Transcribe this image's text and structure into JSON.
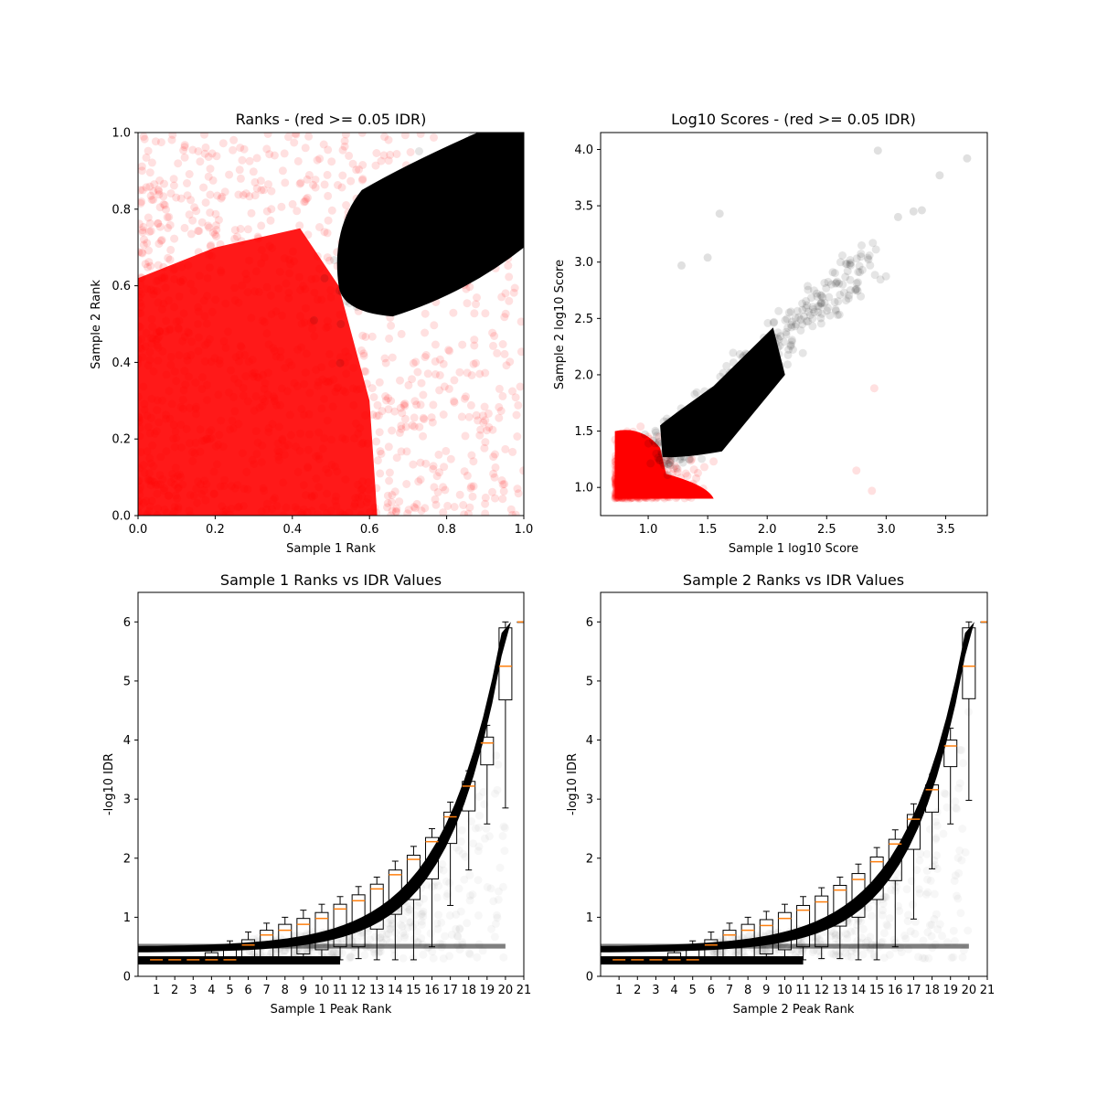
{
  "figure": {
    "background": "#ffffff"
  },
  "chart_data": [
    {
      "type": "scatter",
      "title": "Ranks - (red >= 0.05 IDR)",
      "xlabel": "Sample 1 Rank",
      "ylabel": "Sample 2 Rank",
      "xlim": [
        0.0,
        1.0
      ],
      "ylim": [
        0.0,
        1.0
      ],
      "xticks": [
        "0.0",
        "0.2",
        "0.4",
        "0.6",
        "0.8",
        "1.0"
      ],
      "yticks": [
        "0.0",
        "0.2",
        "0.4",
        "0.6",
        "0.8",
        "1.0"
      ],
      "grid": false,
      "point_alpha": 0.05,
      "series": [
        {
          "color": "#ff0000",
          "description_region": {
            "dense_x": [
              0.0,
              0.6
            ],
            "dense_y": [
              0.0,
              0.72
            ],
            "sparse_to": [
              1.0,
              1.0
            ]
          }
        },
        {
          "color": "#000000",
          "description_region": {
            "dense_x": [
              0.51,
              1.0
            ],
            "dense_y": [
              0.52,
              1.0
            ],
            "tip": [
              0.52,
              0.6
            ]
          }
        }
      ]
    },
    {
      "type": "scatter",
      "title": "Log10 Scores - (red >= 0.05 IDR)",
      "xlabel": "Sample 1 log10 Score",
      "ylabel": "Sample 2 log10 Score",
      "xlim": [
        0.6,
        3.85
      ],
      "ylim": [
        0.75,
        4.15
      ],
      "xticks": [
        "1.0",
        "1.5",
        "2.0",
        "2.5",
        "3.0",
        "3.5"
      ],
      "yticks": [
        "1.0",
        "1.5",
        "2.0",
        "2.5",
        "3.0",
        "3.5",
        "4.0"
      ],
      "grid": false,
      "point_alpha": 0.08,
      "series": [
        {
          "color": "#ff0000",
          "description_region": {
            "dense_x": [
              0.72,
              1.7
            ],
            "dense_y": [
              0.9,
              1.55
            ]
          }
        },
        {
          "color": "#000000",
          "description_region": {
            "dense_x": [
              1.1,
              2.2
            ],
            "dense_y": [
              1.25,
              2.4
            ]
          }
        }
      ],
      "outliers": [
        [
          3.68,
          3.92
        ],
        [
          2.93,
          3.99
        ],
        [
          3.45,
          3.77
        ],
        [
          3.3,
          3.46
        ],
        [
          3.23,
          3.45
        ],
        [
          3.1,
          3.4
        ],
        [
          1.6,
          3.43
        ],
        [
          1.5,
          3.04
        ],
        [
          1.28,
          2.97
        ],
        [
          2.88,
          0.97
        ],
        [
          2.9,
          1.88
        ],
        [
          2.75,
          1.15
        ]
      ]
    },
    {
      "type": "scatter",
      "title": "Sample 1 Ranks vs IDR Values",
      "xlabel": "Sample 1 Peak Rank",
      "ylabel": "-log10 IDR",
      "xlim": [
        0,
        21
      ],
      "ylim": [
        0,
        6.5
      ],
      "xticks": [
        "1",
        "2",
        "3",
        "4",
        "5",
        "6",
        "7",
        "8",
        "9",
        "10",
        "11",
        "12",
        "13",
        "14",
        "15",
        "16",
        "17",
        "18",
        "19",
        "20",
        "21"
      ],
      "yticks": [
        "0",
        "1",
        "2",
        "3",
        "4",
        "5",
        "6"
      ],
      "grid": false,
      "point_color": "#000000",
      "box_median_color": "#ff7f0e",
      "boxes": [
        {
          "pos": 1,
          "q1": 0.28,
          "med": 0.28,
          "q3": 0.28,
          "lo": 0.28,
          "hi": 0.28
        },
        {
          "pos": 2,
          "q1": 0.28,
          "med": 0.28,
          "q3": 0.28,
          "lo": 0.28,
          "hi": 0.28
        },
        {
          "pos": 3,
          "q1": 0.28,
          "med": 0.28,
          "q3": 0.28,
          "lo": 0.28,
          "hi": 0.28
        },
        {
          "pos": 4,
          "q1": 0.28,
          "med": 0.28,
          "q3": 0.4,
          "lo": 0.28,
          "hi": 0.5
        },
        {
          "pos": 5,
          "q1": 0.28,
          "med": 0.28,
          "q3": 0.45,
          "lo": 0.28,
          "hi": 0.6
        },
        {
          "pos": 6,
          "q1": 0.28,
          "med": 0.53,
          "q3": 0.62,
          "lo": 0.28,
          "hi": 0.75
        },
        {
          "pos": 7,
          "q1": 0.3,
          "med": 0.7,
          "q3": 0.78,
          "lo": 0.28,
          "hi": 0.9
        },
        {
          "pos": 8,
          "q1": 0.32,
          "med": 0.78,
          "q3": 0.88,
          "lo": 0.28,
          "hi": 1.0
        },
        {
          "pos": 9,
          "q1": 0.38,
          "med": 0.88,
          "q3": 0.98,
          "lo": 0.28,
          "hi": 1.12
        },
        {
          "pos": 10,
          "q1": 0.45,
          "med": 0.98,
          "q3": 1.08,
          "lo": 0.28,
          "hi": 1.22
        },
        {
          "pos": 11,
          "q1": 0.5,
          "med": 1.14,
          "q3": 1.22,
          "lo": 0.28,
          "hi": 1.35
        },
        {
          "pos": 12,
          "q1": 0.5,
          "med": 1.28,
          "q3": 1.38,
          "lo": 0.3,
          "hi": 1.52
        },
        {
          "pos": 13,
          "q1": 0.8,
          "med": 1.48,
          "q3": 1.56,
          "lo": 0.28,
          "hi": 1.68
        },
        {
          "pos": 14,
          "q1": 1.05,
          "med": 1.72,
          "q3": 1.8,
          "lo": 0.28,
          "hi": 1.95
        },
        {
          "pos": 15,
          "q1": 1.3,
          "med": 1.98,
          "q3": 2.05,
          "lo": 0.28,
          "hi": 2.2
        },
        {
          "pos": 16,
          "q1": 1.65,
          "med": 2.28,
          "q3": 2.35,
          "lo": 0.5,
          "hi": 2.5
        },
        {
          "pos": 17,
          "q1": 2.25,
          "med": 2.7,
          "q3": 2.78,
          "lo": 1.2,
          "hi": 2.95
        },
        {
          "pos": 18,
          "q1": 2.8,
          "med": 3.22,
          "q3": 3.3,
          "lo": 1.8,
          "hi": 3.48
        },
        {
          "pos": 19,
          "q1": 3.58,
          "med": 3.95,
          "q3": 4.05,
          "lo": 2.58,
          "hi": 4.25
        },
        {
          "pos": 20,
          "q1": 4.68,
          "med": 5.25,
          "q3": 5.9,
          "lo": 2.85,
          "hi": 6.0
        },
        {
          "pos": 21,
          "q1": 6.0,
          "med": 6.0,
          "q3": 6.0,
          "lo": 6.0,
          "hi": 6.0
        }
      ]
    },
    {
      "type": "scatter",
      "title": "Sample 2 Ranks vs IDR Values",
      "xlabel": "Sample 2 Peak Rank",
      "ylabel": "-log10 IDR",
      "xlim": [
        0,
        21
      ],
      "ylim": [
        0,
        6.5
      ],
      "xticks": [
        "1",
        "2",
        "3",
        "4",
        "5",
        "6",
        "7",
        "8",
        "9",
        "10",
        "11",
        "12",
        "13",
        "14",
        "15",
        "16",
        "17",
        "18",
        "19",
        "20",
        "21"
      ],
      "yticks": [
        "0",
        "1",
        "2",
        "3",
        "4",
        "5",
        "6"
      ],
      "grid": false,
      "point_color": "#000000",
      "box_median_color": "#ff7f0e",
      "boxes": [
        {
          "pos": 1,
          "q1": 0.28,
          "med": 0.28,
          "q3": 0.28,
          "lo": 0.28,
          "hi": 0.28
        },
        {
          "pos": 2,
          "q1": 0.28,
          "med": 0.28,
          "q3": 0.28,
          "lo": 0.28,
          "hi": 0.28
        },
        {
          "pos": 3,
          "q1": 0.28,
          "med": 0.28,
          "q3": 0.28,
          "lo": 0.28,
          "hi": 0.28
        },
        {
          "pos": 4,
          "q1": 0.28,
          "med": 0.28,
          "q3": 0.4,
          "lo": 0.28,
          "hi": 0.5
        },
        {
          "pos": 5,
          "q1": 0.28,
          "med": 0.28,
          "q3": 0.45,
          "lo": 0.28,
          "hi": 0.6
        },
        {
          "pos": 6,
          "q1": 0.28,
          "med": 0.53,
          "q3": 0.62,
          "lo": 0.28,
          "hi": 0.75
        },
        {
          "pos": 7,
          "q1": 0.3,
          "med": 0.7,
          "q3": 0.78,
          "lo": 0.28,
          "hi": 0.9
        },
        {
          "pos": 8,
          "q1": 0.32,
          "med": 0.78,
          "q3": 0.88,
          "lo": 0.28,
          "hi": 1.0
        },
        {
          "pos": 9,
          "q1": 0.38,
          "med": 0.86,
          "q3": 0.96,
          "lo": 0.28,
          "hi": 1.1
        },
        {
          "pos": 10,
          "q1": 0.45,
          "med": 0.98,
          "q3": 1.08,
          "lo": 0.28,
          "hi": 1.22
        },
        {
          "pos": 11,
          "q1": 0.5,
          "med": 1.12,
          "q3": 1.2,
          "lo": 0.28,
          "hi": 1.35
        },
        {
          "pos": 12,
          "q1": 0.5,
          "med": 1.26,
          "q3": 1.36,
          "lo": 0.3,
          "hi": 1.5
        },
        {
          "pos": 13,
          "q1": 0.85,
          "med": 1.46,
          "q3": 1.54,
          "lo": 0.3,
          "hi": 1.68
        },
        {
          "pos": 14,
          "q1": 1.0,
          "med": 1.64,
          "q3": 1.74,
          "lo": 0.28,
          "hi": 1.9
        },
        {
          "pos": 15,
          "q1": 1.3,
          "med": 1.94,
          "q3": 2.02,
          "lo": 0.28,
          "hi": 2.18
        },
        {
          "pos": 16,
          "q1": 1.62,
          "med": 2.24,
          "q3": 2.32,
          "lo": 0.5,
          "hi": 2.48
        },
        {
          "pos": 17,
          "q1": 2.15,
          "med": 2.66,
          "q3": 2.74,
          "lo": 0.97,
          "hi": 2.92
        },
        {
          "pos": 18,
          "q1": 2.78,
          "med": 3.16,
          "q3": 3.24,
          "lo": 1.82,
          "hi": 3.42
        },
        {
          "pos": 19,
          "q1": 3.55,
          "med": 3.9,
          "q3": 4.0,
          "lo": 2.58,
          "hi": 4.2
        },
        {
          "pos": 20,
          "q1": 4.7,
          "med": 5.25,
          "q3": 5.9,
          "lo": 2.98,
          "hi": 6.0
        },
        {
          "pos": 21,
          "q1": 6.0,
          "med": 6.0,
          "q3": 6.0,
          "lo": 6.0,
          "hi": 6.0
        }
      ]
    }
  ]
}
